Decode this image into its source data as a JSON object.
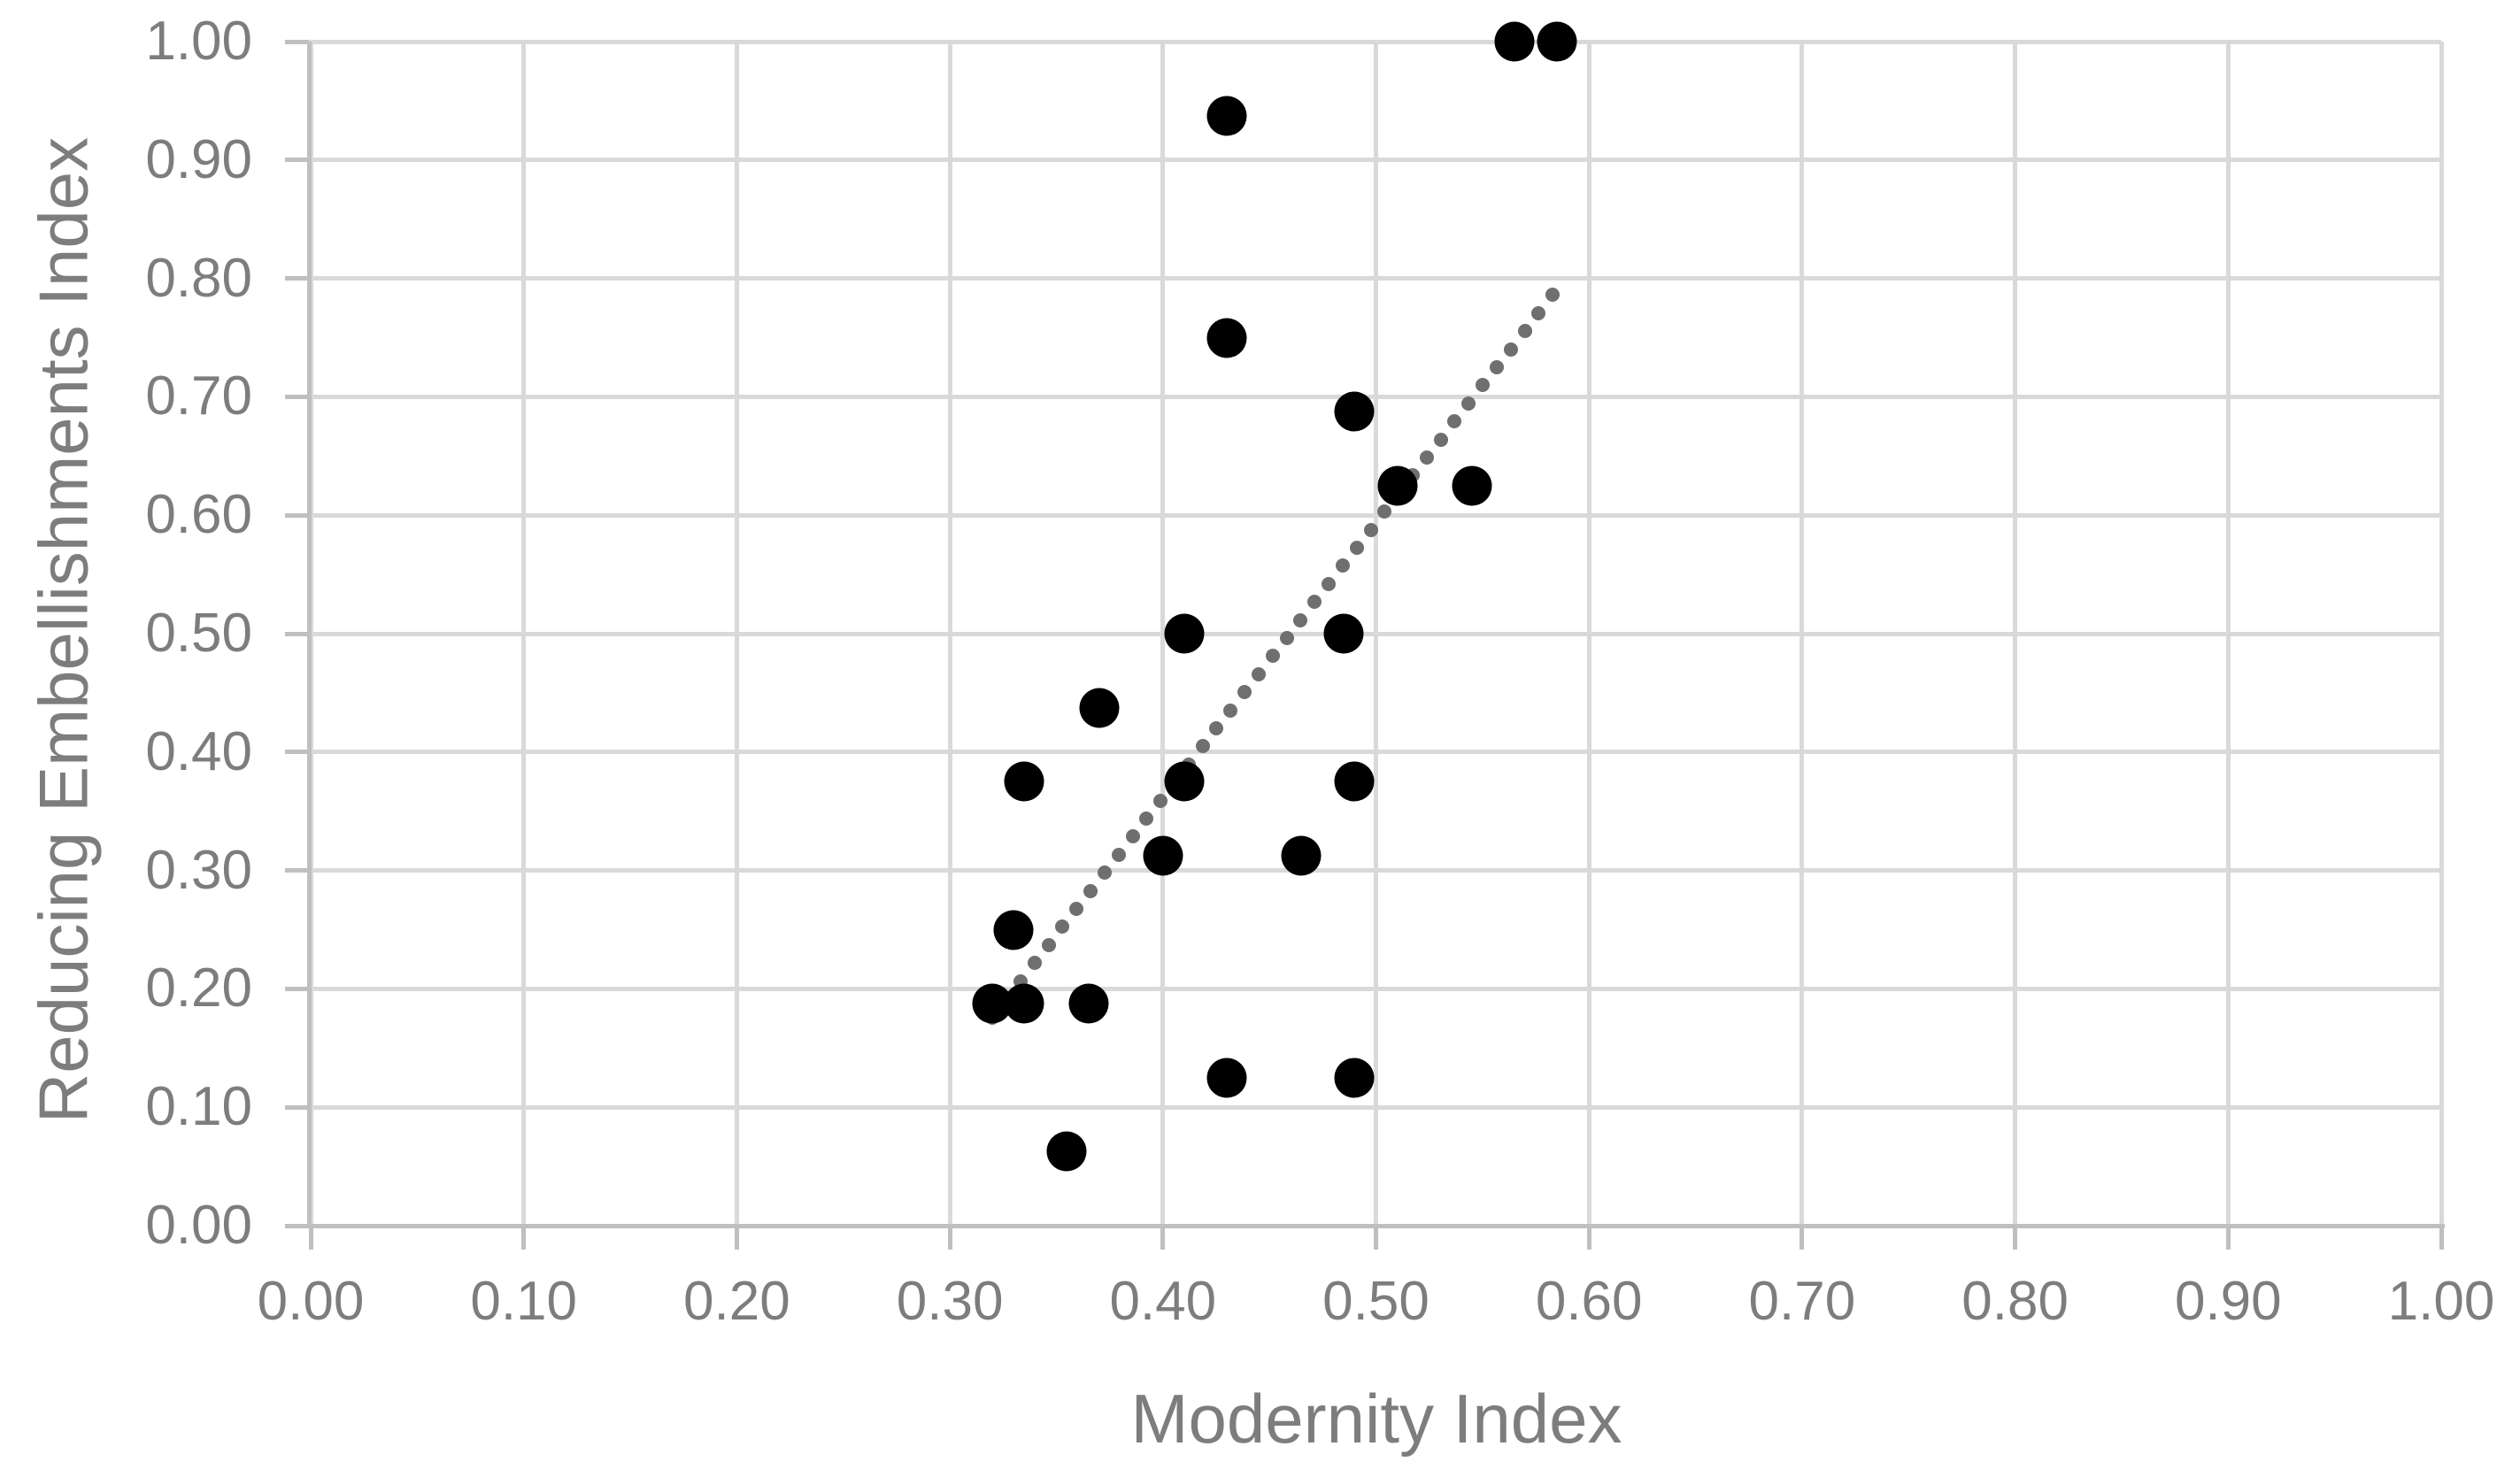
{
  "chart_data": {
    "type": "scatter",
    "title": "",
    "xlabel": "Modernity Index",
    "ylabel": "Reducing Embellishments Index",
    "xlim": [
      0.0,
      1.0
    ],
    "ylim": [
      0.0,
      1.0
    ],
    "x_tick_labels": [
      "0.00",
      "0.10",
      "0.20",
      "0.30",
      "0.40",
      "0.50",
      "0.60",
      "0.70",
      "0.80",
      "0.90",
      "1.00"
    ],
    "y_tick_labels": [
      "0.00",
      "0.10",
      "0.20",
      "0.30",
      "0.40",
      "0.50",
      "0.60",
      "0.70",
      "0.80",
      "0.90",
      "1.00"
    ],
    "grid": true,
    "legend": false,
    "series": [
      {
        "name": "observations",
        "marker": "circle",
        "color": "#000000",
        "points": [
          {
            "x": 0.32,
            "y": 0.1875
          },
          {
            "x": 0.335,
            "y": 0.1875
          },
          {
            "x": 0.365,
            "y": 0.1875
          },
          {
            "x": 0.33,
            "y": 0.25
          },
          {
            "x": 0.355,
            "y": 0.0625
          },
          {
            "x": 0.43,
            "y": 0.125
          },
          {
            "x": 0.49,
            "y": 0.125
          },
          {
            "x": 0.335,
            "y": 0.375
          },
          {
            "x": 0.37,
            "y": 0.4375
          },
          {
            "x": 0.41,
            "y": 0.375
          },
          {
            "x": 0.4,
            "y": 0.3125
          },
          {
            "x": 0.465,
            "y": 0.3125
          },
          {
            "x": 0.49,
            "y": 0.375
          },
          {
            "x": 0.41,
            "y": 0.5
          },
          {
            "x": 0.485,
            "y": 0.5
          },
          {
            "x": 0.49,
            "y": 0.6875
          },
          {
            "x": 0.51,
            "y": 0.625
          },
          {
            "x": 0.545,
            "y": 0.625
          },
          {
            "x": 0.43,
            "y": 0.75
          },
          {
            "x": 0.43,
            "y": 0.9375
          },
          {
            "x": 0.565,
            "y": 1.0
          },
          {
            "x": 0.585,
            "y": 1.0
          }
        ]
      }
    ],
    "trendline": {
      "style": "dotted",
      "color": "#6f6f6f",
      "x_start": 0.32,
      "y_start": 0.176,
      "x_end": 0.583,
      "y_end": 0.786
    },
    "colors": {
      "point": "#000000",
      "trend": "#6f6f6f",
      "gridline": "#d9d9d9",
      "axis_line": "#bfbfbf",
      "tick_label": "#7d7d7d",
      "axis_title": "#7d7d7d",
      "background": "#ffffff"
    }
  }
}
